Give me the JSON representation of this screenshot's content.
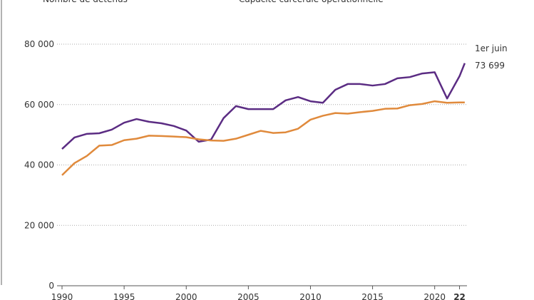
{
  "chart_data": {
    "type": "line",
    "annotation": "1er juin",
    "x": [
      1990,
      1991,
      1992,
      1993,
      1994,
      1995,
      1996,
      1997,
      1998,
      1999,
      2000,
      2001,
      2002,
      2003,
      2004,
      2005,
      2006,
      2007,
      2008,
      2009,
      2010,
      2011,
      2012,
      2013,
      2014,
      2015,
      2016,
      2017,
      2018,
      2019,
      2020,
      2021,
      2022,
      2022.42
    ],
    "series": [
      {
        "name": "Nombre de détenus",
        "color": "#5b2c83",
        "values": [
          45300,
          49100,
          50300,
          50500,
          51700,
          54000,
          55200,
          54300,
          53800,
          52900,
          51400,
          47700,
          48400,
          55500,
          59500,
          58500,
          58500,
          58500,
          61400,
          62500,
          61100,
          60600,
          64900,
          66800,
          66800,
          66300,
          66800,
          68700,
          69100,
          70300,
          70700,
          62000,
          69400,
          73699
        ],
        "value_labels": [
          null,
          null,
          null,
          null,
          null,
          null,
          null,
          null,
          null,
          null,
          null,
          null,
          null,
          null,
          null,
          null,
          null,
          null,
          null,
          null,
          null,
          null,
          null,
          null,
          null,
          null,
          null,
          null,
          null,
          null,
          null,
          null,
          null,
          "73 699"
        ]
      },
      {
        "name": "Capacité carcérale opérationnelle",
        "color": "#e08a3c",
        "values": [
          36600,
          40600,
          43000,
          46400,
          46600,
          48200,
          48700,
          49700,
          49600,
          49400,
          49200,
          48500,
          48100,
          48000,
          48700,
          50000,
          51300,
          50600,
          50800,
          52000,
          55000,
          56300,
          57200,
          57000,
          57500,
          57900,
          58600,
          58700,
          59800,
          60200,
          61100,
          60600,
          60700,
          60700
        ]
      }
    ],
    "xlim": [
      1990,
      2022.6
    ],
    "xticks": [
      1990,
      1995,
      2000,
      2005,
      2010,
      2015,
      2020,
      {
        "value": 2022,
        "label": "22"
      }
    ],
    "ylim": [
      0,
      80000
    ],
    "yticks": [
      0,
      {
        "value": 20000,
        "label": "20 000"
      },
      {
        "value": 40000,
        "label": "40 000"
      },
      {
        "value": 60000,
        "label": "60 000"
      },
      {
        "value": 80000,
        "label": "80 000"
      }
    ],
    "grid": true
  }
}
